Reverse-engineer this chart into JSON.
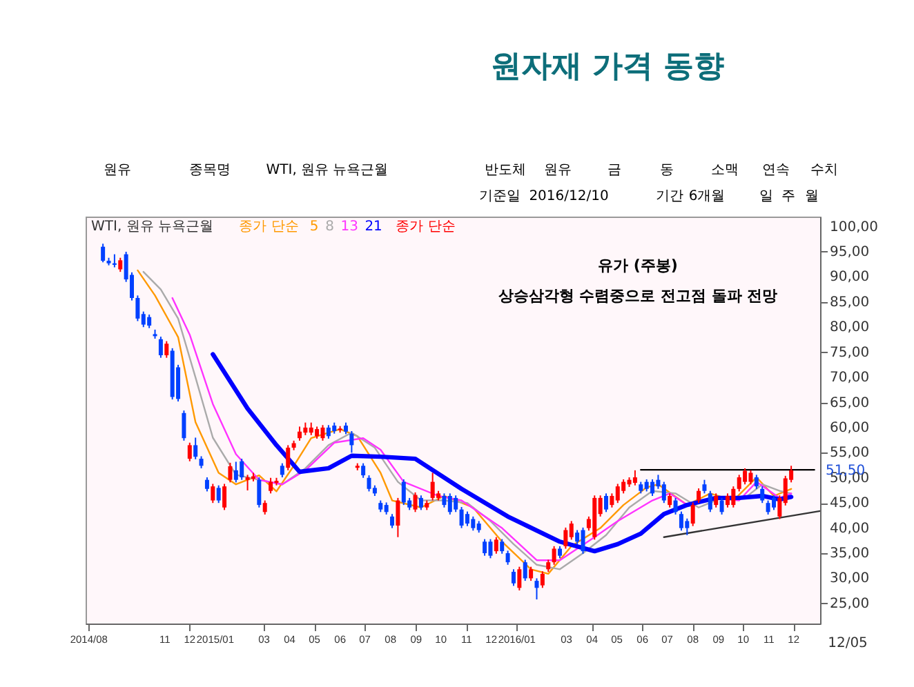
{
  "chart_data": {
    "type": "candlestick",
    "title": "원자재 가격 동향",
    "legend_title": "종가 단순",
    "legend": "top left",
    "grid": false,
    "xlim": [
      "2014-07-28",
      "2017-01-02"
    ],
    "ylim": [
      21,
      102
    ],
    "xticks": [
      {
        "value": "2014-08-01",
        "label": "2014/08"
      },
      {
        "value": "2014-11-01",
        "label": "11"
      },
      {
        "value": "2014-12-01",
        "label": "12"
      },
      {
        "value": "2015-01-01",
        "label": "2015/01"
      },
      {
        "value": "2015-03-01",
        "label": "03"
      },
      {
        "value": "2015-04-01",
        "label": "04"
      },
      {
        "value": "2015-05-01",
        "label": "05"
      },
      {
        "value": "2015-06-01",
        "label": "06"
      },
      {
        "value": "2015-07-01",
        "label": "07"
      },
      {
        "value": "2015-08-01",
        "label": "08"
      },
      {
        "value": "2015-09-01",
        "label": "09"
      },
      {
        "value": "2015-10-01",
        "label": "10"
      },
      {
        "value": "2015-11-01",
        "label": "11"
      },
      {
        "value": "2015-12-01",
        "label": "12"
      },
      {
        "value": "2016-01-01",
        "label": "2016/01"
      },
      {
        "value": "2016-03-01",
        "label": "03"
      },
      {
        "value": "2016-04-01",
        "label": "04"
      },
      {
        "value": "2016-05-01",
        "label": "05"
      },
      {
        "value": "2016-06-01",
        "label": "06"
      },
      {
        "value": "2016-07-01",
        "label": "07"
      },
      {
        "value": "2016-08-01",
        "label": "08"
      },
      {
        "value": "2016-09-01",
        "label": "09"
      },
      {
        "value": "2016-10-01",
        "label": "10"
      },
      {
        "value": "2016-11-01",
        "label": "11"
      },
      {
        "value": "2016-12-01",
        "label": "12"
      }
    ],
    "yticks": [
      {
        "value": 25,
        "label": "25,00"
      },
      {
        "value": 30,
        "label": "30,00"
      },
      {
        "value": 35,
        "label": "35,00"
      },
      {
        "value": 40,
        "label": "40,00"
      },
      {
        "value": 45,
        "label": "45,00"
      },
      {
        "value": 50,
        "label": "50,00"
      },
      {
        "value": 55,
        "label": "55,00"
      },
      {
        "value": 60,
        "label": "60,00"
      },
      {
        "value": 65,
        "label": "65,00"
      },
      {
        "value": 70,
        "label": "70,00"
      },
      {
        "value": 75,
        "label": "75,00"
      },
      {
        "value": 80,
        "label": "80,00"
      },
      {
        "value": 85,
        "label": "85,00"
      },
      {
        "value": 90,
        "label": "90,00"
      },
      {
        "value": 95,
        "label": "95,00"
      },
      {
        "value": 100,
        "label": "100,00"
      }
    ],
    "series": [
      {
        "name": "WTI, 원유 뉴욕근월",
        "type": "candlestick",
        "colors": [
          "#0040ff",
          "#0040ff",
          "#0040ff",
          "#ff0000",
          "#0040ff",
          "#0040ff",
          "#0040ff",
          "#0040ff",
          "#0040ff",
          "#0040ff",
          "#0040ff",
          "#ff0000",
          "#0040ff",
          "#0040ff",
          "#0040ff",
          "#ff0000",
          "#0040ff",
          "#0040ff",
          "#0040ff",
          "#ff0000",
          "#0040ff",
          "#ff0000",
          "#ff0000",
          "#0040ff",
          "#0040ff",
          "#ff0000",
          "#ff0000",
          "#0040ff",
          "#ff0000",
          "#ff0000",
          "#ff0000",
          "#0040ff",
          "#ff0000",
          "#ff0000",
          "#ff0000",
          "#ff0000",
          "#ff0000",
          "#ff0000",
          "#ff0000",
          "#0040ff",
          "#0040ff",
          "#ff0000",
          "#0040ff",
          "#0040ff",
          "#ff0000",
          "#0040ff",
          "#0040ff",
          "#0040ff",
          "#0040ff",
          "#0040ff",
          "#0040ff",
          "#ff0000",
          "#0040ff",
          "#0040ff",
          "#ff0000",
          "#0040ff",
          "#ff0000",
          "#ff0000",
          "#ff0000",
          "#0040ff",
          "#0040ff",
          "#0040ff",
          "#0040ff",
          "#0040ff",
          "#0040ff",
          "#0040ff",
          "#0040ff",
          "#0040ff",
          "#ff0000",
          "#0040ff",
          "#0040ff",
          "#0040ff",
          "#ff0000",
          "#0040ff",
          "#ff0000",
          "#0040ff",
          "#ff0000",
          "#ff0000",
          "#ff0000",
          "#0040ff",
          "#ff0000",
          "#ff0000",
          "#0040ff",
          "#0040ff",
          "#ff0000",
          "#ff0000",
          "#ff0000",
          "#0040ff",
          "#ff0000",
          "#ff0000",
          "#ff0000",
          "#ff0000",
          "#ff0000",
          "#0040ff",
          "#0040ff",
          "#0040ff",
          "#0040ff",
          "#0040ff",
          "#ff0000",
          "#0040ff",
          "#0040ff",
          "#0040ff",
          "#ff0000",
          "#ff0000",
          "#0040ff",
          "#0040ff",
          "#ff0000",
          "#0040ff",
          "#ff0000",
          "#ff0000",
          "#ff0000",
          "#ff0000",
          "#ff0000",
          "#0040ff",
          "#0040ff",
          "#0040ff",
          "#0040ff",
          "#ff0000",
          "#ff0000",
          "#ff0000"
        ],
        "x": [
          "2014-08-18",
          "2014-08-25",
          "2014-09-01",
          "2014-09-08",
          "2014-09-15",
          "2014-09-22",
          "2014-09-29",
          "2014-10-06",
          "2014-10-13",
          "2014-10-20",
          "2014-10-27",
          "2014-11-03",
          "2014-11-10",
          "2014-11-17",
          "2014-11-24",
          "2014-12-01",
          "2014-12-08",
          "2014-12-15",
          "2014-12-22",
          "2014-12-29",
          "2015-01-05",
          "2015-01-12",
          "2015-01-19",
          "2015-01-26",
          "2015-02-02",
          "2015-02-09",
          "2015-02-16",
          "2015-02-23",
          "2015-03-02",
          "2015-03-09",
          "2015-03-16",
          "2015-03-23",
          "2015-03-30",
          "2015-04-06",
          "2015-04-13",
          "2015-04-20",
          "2015-04-27",
          "2015-05-04",
          "2015-05-11",
          "2015-05-18",
          "2015-05-25",
          "2015-06-01",
          "2015-06-08",
          "2015-06-15",
          "2015-06-22",
          "2015-06-29",
          "2015-07-06",
          "2015-07-13",
          "2015-07-20",
          "2015-07-27",
          "2015-08-03",
          "2015-08-10",
          "2015-08-17",
          "2015-08-24",
          "2015-08-31",
          "2015-09-07",
          "2015-09-14",
          "2015-09-21",
          "2015-09-28",
          "2015-10-05",
          "2015-10-12",
          "2015-10-19",
          "2015-10-26",
          "2015-11-02",
          "2015-11-09",
          "2015-11-16",
          "2015-11-23",
          "2015-11-30",
          "2015-12-07",
          "2015-12-14",
          "2015-12-21",
          "2015-12-28",
          "2016-01-04",
          "2016-01-11",
          "2016-01-18",
          "2016-01-25",
          "2016-02-01",
          "2016-02-08",
          "2016-02-15",
          "2016-02-22",
          "2016-02-29",
          "2016-03-07",
          "2016-03-14",
          "2016-03-21",
          "2016-03-28",
          "2016-04-04",
          "2016-04-11",
          "2016-04-18",
          "2016-04-25",
          "2016-05-02",
          "2016-05-09",
          "2016-05-16",
          "2016-05-23",
          "2016-05-30",
          "2016-06-06",
          "2016-06-13",
          "2016-06-20",
          "2016-06-27",
          "2016-07-04",
          "2016-07-11",
          "2016-07-18",
          "2016-07-25",
          "2016-08-01",
          "2016-08-08",
          "2016-08-15",
          "2016-08-22",
          "2016-08-29",
          "2016-09-05",
          "2016-09-12",
          "2016-09-19",
          "2016-09-26",
          "2016-10-03",
          "2016-10-10",
          "2016-10-17",
          "2016-10-24",
          "2016-10-31",
          "2016-11-07",
          "2016-11-14",
          "2016-11-21",
          "2016-11-28"
        ],
        "ohlc": [
          [
            96,
            96.6,
            92.9,
            93.2
          ],
          [
            93.2,
            93.8,
            92.3,
            92.7
          ],
          [
            92.7,
            94.5,
            91.9,
            92.4
          ],
          [
            91.5,
            93.8,
            91.0,
            93.3
          ],
          [
            94.5,
            95.0,
            89.0,
            89.5
          ],
          [
            90.4,
            90.9,
            85.3,
            85.8
          ],
          [
            85.8,
            86.3,
            81.2,
            81.7
          ],
          [
            82.6,
            83.1,
            80.0,
            80.5
          ],
          [
            82.0,
            82.5,
            79.8,
            80.3
          ],
          [
            78.6,
            79.5,
            77.7,
            78.2
          ],
          [
            77.6,
            78.1,
            73.9,
            74.4
          ],
          [
            74.4,
            77.2,
            73.9,
            76.7
          ],
          [
            75.3,
            75.8,
            65.6,
            66.1
          ],
          [
            72.0,
            72.5,
            65.2,
            65.7
          ],
          [
            62.9,
            63.4,
            57.4,
            57.9
          ],
          [
            53.8,
            57.0,
            53.3,
            56.5
          ],
          [
            56.5,
            58.0,
            53.7,
            54.2
          ],
          [
            53.8,
            54.3,
            51.9,
            52.4
          ],
          [
            49.6,
            50.1,
            47.3,
            47.8
          ],
          [
            45.5,
            48.8,
            45.0,
            48.3
          ],
          [
            48.0,
            48.5,
            45.0,
            45.5
          ],
          [
            44.1,
            48.8,
            43.6,
            48.3
          ],
          [
            49.6,
            53.0,
            49.1,
            52.3
          ],
          [
            51.5,
            53.2,
            49.1,
            49.6
          ],
          [
            53.3,
            53.8,
            49.6,
            50.1
          ],
          [
            49.6,
            50.6,
            47.5,
            50.1
          ],
          [
            49.8,
            51.0,
            49.3,
            50.3
          ],
          [
            49.6,
            50.1,
            44.1,
            44.6
          ],
          [
            43.2,
            45.5,
            42.7,
            45.0
          ],
          [
            47.4,
            50.0,
            46.9,
            49.2
          ],
          [
            49.0,
            50.0,
            48.5,
            49.4
          ],
          [
            52.4,
            52.9,
            50.1,
            50.6
          ],
          [
            52.0,
            56.5,
            51.5,
            56.0
          ],
          [
            56.0,
            57.4,
            55.5,
            56.9
          ],
          [
            57.9,
            60.2,
            57.4,
            59.2
          ],
          [
            59.0,
            61.0,
            58.5,
            60.0
          ],
          [
            59.0,
            61.0,
            58.5,
            60.0
          ],
          [
            58.3,
            60.2,
            57.8,
            59.7
          ],
          [
            57.9,
            60.5,
            57.4,
            60.0
          ],
          [
            60.0,
            60.5,
            57.8,
            58.3
          ],
          [
            60.4,
            61.0,
            58.8,
            59.3
          ],
          [
            59.5,
            60.3,
            59.0,
            59.8
          ],
          [
            60.4,
            61.0,
            58.7,
            59.2
          ],
          [
            58.8,
            59.3,
            55.0,
            56.5
          ],
          [
            52.0,
            52.9,
            51.5,
            52.4
          ],
          [
            52.4,
            52.9,
            50.0,
            50.5
          ],
          [
            50.0,
            50.5,
            47.3,
            47.8
          ],
          [
            48.0,
            48.5,
            46.4,
            46.9
          ],
          [
            45.0,
            45.5,
            43.2,
            43.7
          ],
          [
            44.6,
            45.1,
            42.7,
            43.2
          ],
          [
            42.3,
            42.8,
            40.0,
            40.5
          ],
          [
            40.5,
            46.0,
            38.2,
            45.5
          ],
          [
            49.2,
            49.7,
            44.6,
            45.1
          ],
          [
            45.5,
            46.0,
            43.6,
            44.1
          ],
          [
            43.7,
            47.1,
            43.2,
            46.6
          ],
          [
            46.0,
            46.5,
            43.6,
            44.1
          ],
          [
            44.1,
            45.5,
            43.6,
            45.0
          ],
          [
            46.0,
            51.0,
            45.5,
            49.2
          ],
          [
            46.0,
            47.4,
            45.5,
            46.9
          ],
          [
            46.4,
            46.9,
            44.1,
            44.6
          ],
          [
            46.4,
            46.9,
            42.7,
            43.2
          ],
          [
            46.0,
            46.5,
            43.2,
            43.7
          ],
          [
            43.7,
            44.2,
            40.0,
            40.5
          ],
          [
            42.8,
            43.3,
            40.4,
            40.9
          ],
          [
            41.8,
            42.3,
            39.5,
            40.0
          ],
          [
            40.9,
            41.4,
            39.1,
            39.6
          ],
          [
            37.3,
            37.8,
            34.5,
            35.0
          ],
          [
            37.3,
            37.8,
            34.0,
            34.5
          ],
          [
            35.4,
            38.2,
            34.9,
            37.7
          ],
          [
            37.3,
            37.8,
            34.9,
            35.4
          ],
          [
            35.0,
            35.5,
            32.7,
            33.2
          ],
          [
            31.3,
            31.8,
            28.5,
            29.0
          ],
          [
            28.1,
            32.3,
            27.6,
            31.8
          ],
          [
            33.2,
            33.7,
            29.5,
            30.0
          ],
          [
            30.0,
            32.3,
            29.5,
            31.8
          ],
          [
            29.5,
            30.0,
            25.8,
            28.1
          ],
          [
            28.6,
            31.4,
            28.1,
            30.9
          ],
          [
            31.8,
            33.7,
            31.3,
            33.2
          ],
          [
            33.2,
            36.4,
            32.7,
            35.9
          ],
          [
            35.9,
            36.4,
            34.0,
            34.5
          ],
          [
            36.4,
            40.1,
            35.9,
            39.6
          ],
          [
            38.2,
            41.4,
            37.7,
            40.9
          ],
          [
            39.1,
            39.6,
            36.8,
            37.3
          ],
          [
            39.6,
            40.1,
            34.9,
            35.4
          ],
          [
            40.0,
            42.3,
            39.5,
            41.8
          ],
          [
            38.2,
            46.5,
            37.7,
            46.0
          ],
          [
            42.8,
            46.5,
            42.3,
            46.0
          ],
          [
            46.4,
            46.9,
            43.2,
            43.7
          ],
          [
            44.6,
            46.9,
            44.1,
            46.4
          ],
          [
            45.5,
            48.8,
            45.0,
            48.3
          ],
          [
            47.4,
            49.7,
            46.9,
            49.2
          ],
          [
            48.7,
            50.1,
            48.2,
            49.6
          ],
          [
            49.0,
            51.5,
            48.5,
            50.1
          ],
          [
            48.7,
            49.2,
            46.9,
            47.4
          ],
          [
            49.2,
            49.7,
            47.3,
            47.8
          ],
          [
            49.2,
            49.7,
            46.4,
            46.9
          ],
          [
            49.6,
            50.6,
            47.8,
            48.3
          ],
          [
            48.7,
            49.2,
            45.0,
            45.5
          ],
          [
            44.6,
            46.9,
            44.1,
            46.4
          ],
          [
            45.5,
            46.0,
            42.7,
            43.2
          ],
          [
            42.8,
            43.3,
            39.5,
            40.0
          ],
          [
            41.4,
            41.9,
            38.6,
            40.0
          ],
          [
            40.9,
            45.1,
            40.4,
            44.6
          ],
          [
            45.5,
            47.9,
            45.0,
            47.4
          ],
          [
            48.7,
            49.6,
            46.9,
            47.4
          ],
          [
            46.9,
            47.4,
            43.2,
            43.7
          ],
          [
            44.6,
            46.9,
            44.1,
            46.4
          ],
          [
            45.5,
            46.0,
            42.7,
            43.2
          ],
          [
            44.6,
            46.9,
            44.1,
            46.4
          ],
          [
            44.6,
            48.3,
            44.1,
            47.8
          ],
          [
            47.8,
            50.6,
            47.3,
            50.1
          ],
          [
            49.2,
            51.9,
            48.7,
            51.4
          ],
          [
            49.2,
            51.5,
            48.7,
            51.0
          ],
          [
            50.1,
            50.6,
            47.8,
            48.3
          ],
          [
            47.8,
            48.3,
            45.0,
            45.5
          ],
          [
            45.0,
            45.5,
            42.7,
            43.2
          ],
          [
            46.0,
            46.5,
            43.6,
            44.1
          ],
          [
            42.3,
            46.5,
            41.8,
            46.0
          ],
          [
            45.0,
            50.4,
            44.5,
            49.9
          ],
          [
            49.6,
            52.4,
            49.1,
            51.5
          ]
        ]
      },
      {
        "name": "5",
        "type": "line",
        "color": "#ff9900",
        "x": [
          "2014-09-29",
          "2014-10-20",
          "2014-11-17",
          "2014-12-08",
          "2015-01-05",
          "2015-01-26",
          "2015-02-23",
          "2015-03-16",
          "2015-04-06",
          "2015-04-27",
          "2015-06-01",
          "2015-06-22",
          "2015-07-20",
          "2015-08-03",
          "2015-09-07",
          "2015-10-05",
          "2015-11-09",
          "2015-12-14",
          "2016-01-18",
          "2016-02-08",
          "2016-03-07",
          "2016-04-11",
          "2016-05-09",
          "2016-06-06",
          "2016-06-20",
          "2016-07-25",
          "2016-08-22",
          "2016-09-19",
          "2016-10-17",
          "2016-11-07",
          "2016-11-28"
        ],
        "values": [
          91.3,
          86.3,
          78.0,
          61.1,
          51.0,
          48.7,
          50.5,
          47.3,
          52.4,
          57.9,
          59.7,
          58.3,
          51.0,
          45.5,
          44.1,
          46.4,
          44.1,
          37.3,
          31.8,
          30.9,
          36.4,
          40.0,
          44.6,
          48.1,
          48.7,
          44.6,
          46.9,
          45.5,
          50.1,
          46.4,
          47.8
        ]
      },
      {
        "name": "8",
        "type": "line",
        "color": "#aaaaaa",
        "x": [
          "2014-10-06",
          "2014-10-27",
          "2014-11-17",
          "2014-12-08",
          "2014-12-29",
          "2015-01-26",
          "2015-02-23",
          "2015-03-23",
          "2015-04-20",
          "2015-05-18",
          "2015-06-15",
          "2015-07-13",
          "2015-08-10",
          "2015-09-07",
          "2015-10-05",
          "2015-11-02",
          "2015-11-30",
          "2015-12-28",
          "2016-01-25",
          "2016-02-22",
          "2016-03-21",
          "2016-04-18",
          "2016-05-16",
          "2016-06-13",
          "2016-07-11",
          "2016-08-08",
          "2016-09-05",
          "2016-10-03",
          "2016-10-24",
          "2016-11-14",
          "2016-11-28"
        ],
        "values": [
          91,
          87.5,
          81.7,
          70,
          58,
          50.6,
          49.6,
          48.7,
          51.9,
          56.5,
          59,
          56,
          49.2,
          45.5,
          45.5,
          45,
          41.4,
          36.8,
          32.7,
          31.8,
          35,
          38.6,
          44.1,
          47.4,
          46.9,
          44.1,
          46,
          46,
          48.7,
          47.4,
          46.9
        ]
      },
      {
        "name": "13",
        "type": "line",
        "color": "#ff33ff",
        "x": [
          "2014-11-10",
          "2014-12-01",
          "2014-12-29",
          "2015-01-26",
          "2015-02-23",
          "2015-03-23",
          "2015-04-20",
          "2015-05-25",
          "2015-06-29",
          "2015-07-20",
          "2015-08-17",
          "2015-09-28",
          "2015-10-26",
          "2015-12-14",
          "2016-01-25",
          "2016-02-22",
          "2016-04-04",
          "2016-05-02",
          "2016-06-13",
          "2016-07-04",
          "2016-07-25",
          "2016-08-29",
          "2016-09-26",
          "2016-10-17",
          "2016-11-14",
          "2016-11-28"
        ],
        "values": [
          85.8,
          78.5,
          64.7,
          54.7,
          49.6,
          48.7,
          51.5,
          57,
          57.9,
          55.6,
          49.2,
          46.4,
          45.5,
          40,
          33.6,
          33.6,
          38.2,
          41.4,
          45.5,
          46.9,
          44.6,
          46,
          45.5,
          49.2,
          46,
          46.9
        ]
      },
      {
        "name": "21",
        "type": "line",
        "color": "#0000ff",
        "x": [
          "2014-12-29",
          "2015-02-09",
          "2015-03-16",
          "2015-04-13",
          "2015-05-18",
          "2015-06-15",
          "2015-07-20",
          "2015-08-31",
          "2015-10-26",
          "2015-12-21",
          "2016-02-22",
          "2016-04-04",
          "2016-05-02",
          "2016-05-30",
          "2016-06-27",
          "2016-07-25",
          "2016-08-29",
          "2016-09-26",
          "2016-10-24",
          "2016-11-14",
          "2016-11-28"
        ],
        "values": [
          74.6,
          63.8,
          56.5,
          51.2,
          51.9,
          54.4,
          54.2,
          53.8,
          47.8,
          42.3,
          37.3,
          35.4,
          36.8,
          38.9,
          42.8,
          44.6,
          46,
          46,
          46.4,
          45.7,
          46.2
        ]
      },
      {
        "type": "line",
        "color": "#000000",
        "x": [
          "2016-05-30",
          "2016-12-26"
        ],
        "values": [
          51.6,
          51.6
        ]
      },
      {
        "type": "line",
        "color": "#333333",
        "x": [
          "2016-06-27",
          "2017-01-02"
        ],
        "values": [
          38.2,
          43.4
        ]
      }
    ],
    "annotations": [
      "원유",
      "종목명",
      "WTI, 원유 뉴욕근월",
      "반도체",
      "원유",
      "금",
      "동",
      "소맥",
      "연속",
      "수치",
      "기준일",
      "2016/12/10",
      "기간",
      "6개월",
      "일",
      "주",
      "월",
      "유가 (주봉)",
      "상승삼각형 수렴중으로 전고점 돌파 전망",
      "종가 단순",
      "12/05",
      "51,50"
    ]
  }
}
